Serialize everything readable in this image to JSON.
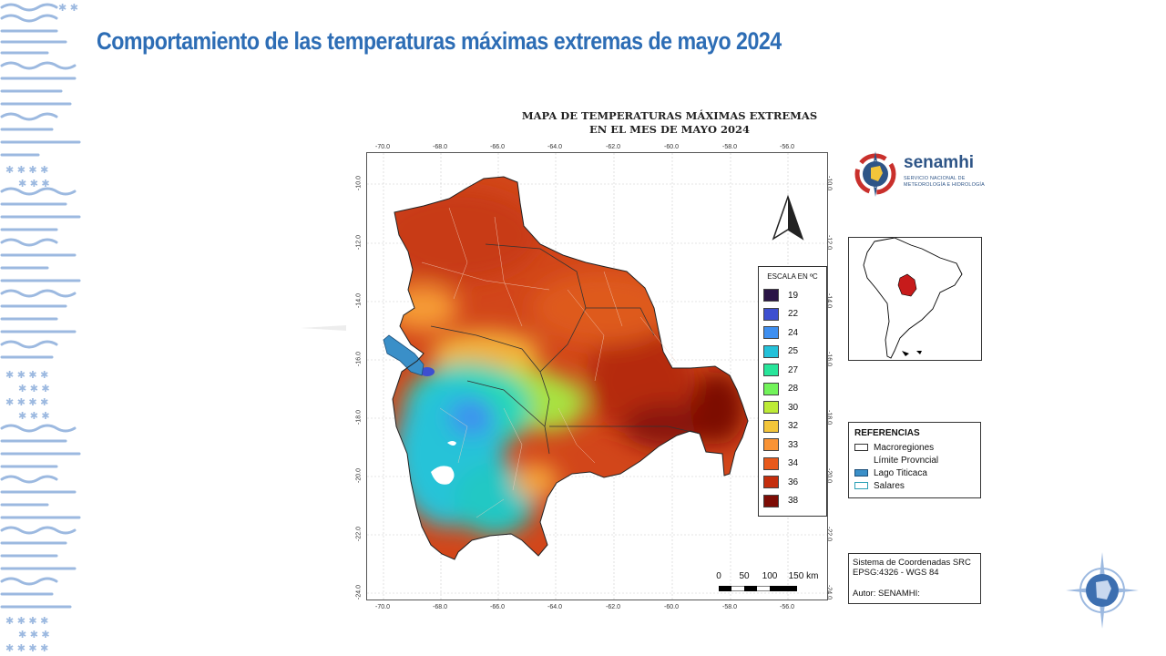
{
  "slide": {
    "title": "Comportamiento de las temperaturas máximas extremas de mayo 2024"
  },
  "map": {
    "title_line1": "MAPA DE TEMPERATURAS MÁXIMAS EXTREMAS",
    "title_line2": "EN EL MES DE MAYO 2024",
    "lon_ticks": [
      "-70.0",
      "-68.0",
      "-66.0",
      "-64.0",
      "-62.0",
      "-60.0",
      "-58.0",
      "-56.0"
    ],
    "lat_ticks": [
      "-10.0",
      "-12.0",
      "-14.0",
      "-16.0",
      "-18.0",
      "-20.0",
      "-22.0",
      "-24.0"
    ]
  },
  "legend": {
    "title": "ESCALA EN ºC",
    "items": [
      {
        "label": "19",
        "color": "#2a1446"
      },
      {
        "label": "22",
        "color": "#3d4fd0"
      },
      {
        "label": "24",
        "color": "#3e8ff0"
      },
      {
        "label": "25",
        "color": "#23c1d9"
      },
      {
        "label": "27",
        "color": "#27e59a"
      },
      {
        "label": "28",
        "color": "#72f35a"
      },
      {
        "label": "30",
        "color": "#bdeb36"
      },
      {
        "label": "32",
        "color": "#f3c53a"
      },
      {
        "label": "33",
        "color": "#f99335"
      },
      {
        "label": "34",
        "color": "#e8591b"
      },
      {
        "label": "36",
        "color": "#c42e0d"
      },
      {
        "label": "38",
        "color": "#7d0c05"
      }
    ]
  },
  "logo": {
    "name": "senamhi",
    "subtitle_line1": "SERVICIO NACIONAL DE",
    "subtitle_line2": "METEOROLOGÍA E HIDROLOGÍA"
  },
  "references": {
    "title": "REFERENCIAS",
    "items": [
      {
        "label": "Macroregiones",
        "fill": "#ffffff",
        "border": "#333333"
      },
      {
        "label": "Límite Provncial",
        "fill": "#ffffff",
        "border": "#ffffff"
      },
      {
        "label": "Lago Titicaca",
        "fill": "#3a8fc8",
        "border": "#1d4f79"
      },
      {
        "label": "Salares",
        "fill": "#ffffff",
        "border": "#2aa0b5"
      }
    ]
  },
  "srs": {
    "line1": "Sistema de Coordenadas SRC",
    "line2": "EPSG:4326 - WGS 84",
    "line3": "Autor: SENAMHI:"
  },
  "scalebar": {
    "labels": [
      "0",
      "50",
      "100",
      "150 km"
    ]
  }
}
